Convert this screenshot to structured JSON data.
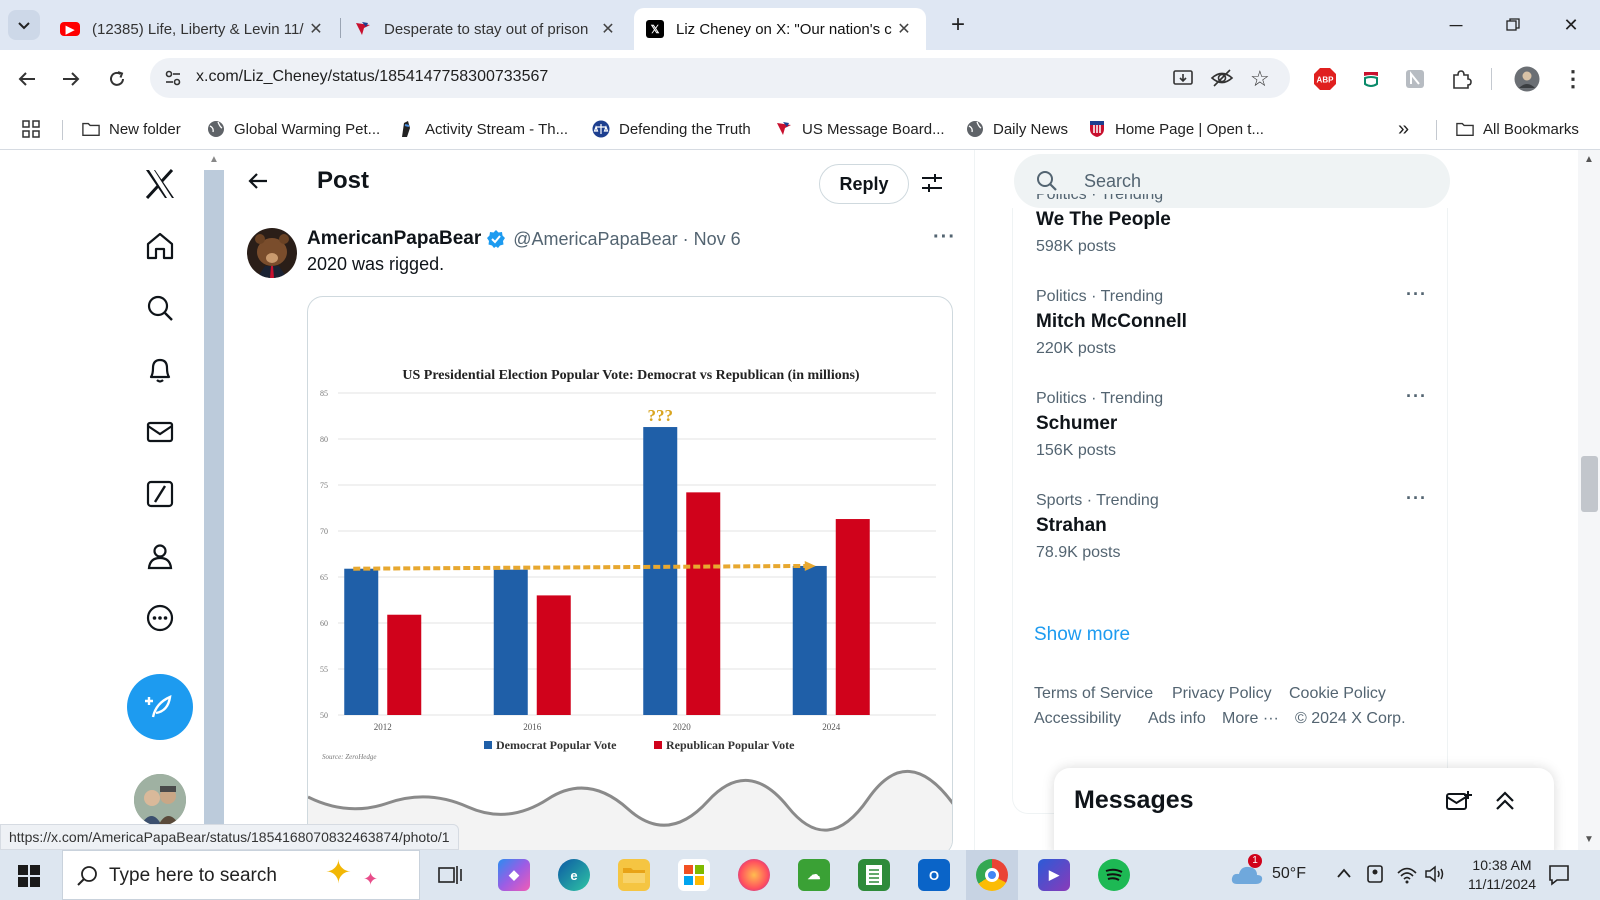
{
  "browser": {
    "tabs": [
      {
        "title": "(12385) Life, Liberty & Levin 11/",
        "icon": "youtube-icon"
      },
      {
        "title": "Desperate to stay out of prison",
        "icon": "message-board-icon"
      },
      {
        "title": "Liz Cheney on X: \"Our nation's c",
        "icon": "x-logo-icon"
      }
    ],
    "url": "x.com/Liz_Cheney/status/1854147758300733567",
    "bookmarks": [
      {
        "label": "New folder",
        "icon": "folder-icon"
      },
      {
        "label": "Global Warming Pet...",
        "icon": "globe-icon"
      },
      {
        "label": "Activity Stream - Th...",
        "icon": "activity-icon"
      },
      {
        "label": "Defending the Truth",
        "icon": "scales-icon"
      },
      {
        "label": "US Message Board...",
        "icon": "message-board-icon"
      },
      {
        "label": "Daily News",
        "icon": "globe-icon"
      },
      {
        "label": "Home Page | Open t...",
        "icon": "shield-icon"
      }
    ],
    "all_bookmarks": "All Bookmarks",
    "status_url": "https://x.com/AmericaPapaBear/status/1854168070832463874/photo/1"
  },
  "header": {
    "title": "Post",
    "reply_label": "Reply"
  },
  "post": {
    "author_name": "AmericanPapaBear",
    "handle": "@AmericaPapaBear",
    "date": "Nov 6",
    "text": "2020 was rigged.",
    "more": "···"
  },
  "chart_data": {
    "type": "bar",
    "title": "US Presidential Election Popular Vote: Democrat vs Republican (in millions)",
    "categories": [
      "2012",
      "2016",
      "2020",
      "2024"
    ],
    "series": [
      {
        "name": "Democrat Popular Vote",
        "values": [
          65.9,
          65.8,
          81.3,
          66.2
        ],
        "color": "#1f5fa8"
      },
      {
        "name": "Republican Popular Vote",
        "values": [
          60.9,
          63.0,
          74.2,
          71.3
        ],
        "color": "#d0021b"
      }
    ],
    "trendline": {
      "from": 65.9,
      "to": 66.2,
      "color": "#e7a830"
    },
    "ylim": [
      50,
      85
    ],
    "yticks": [
      "50",
      "55",
      "60",
      "65",
      "70",
      "75",
      "80",
      "85"
    ],
    "annotation": "???",
    "source": "Source: ZeroHedge",
    "legend_position": "bottom",
    "grid": true
  },
  "search": {
    "placeholder": "Search"
  },
  "trends": [
    {
      "category": "Politics · Trending",
      "name": "We The People",
      "count": "598K posts"
    },
    {
      "category": "Politics · Trending",
      "name": "Mitch McConnell",
      "count": "220K posts"
    },
    {
      "category": "Politics · Trending",
      "name": "Schumer",
      "count": "156K posts"
    },
    {
      "category": "Sports · Trending",
      "name": "Strahan",
      "count": "78.9K posts"
    }
  ],
  "show_more": "Show more",
  "footer_links": [
    "Terms of Service",
    "Privacy Policy",
    "Cookie Policy",
    "Accessibility",
    "Ads info",
    "More ···",
    "© 2024 X Corp."
  ],
  "messages": {
    "title": "Messages"
  },
  "taskbar": {
    "search_placeholder": "Type here to search",
    "weather": "50°F",
    "time": "10:38 AM",
    "date": "11/11/2024",
    "weather_badge": "1"
  },
  "colors": {
    "x_blue": "#1d9bf0",
    "tab_strip": "#dfe7f3",
    "democrat": "#1f5fa8",
    "republican": "#d0021b"
  }
}
